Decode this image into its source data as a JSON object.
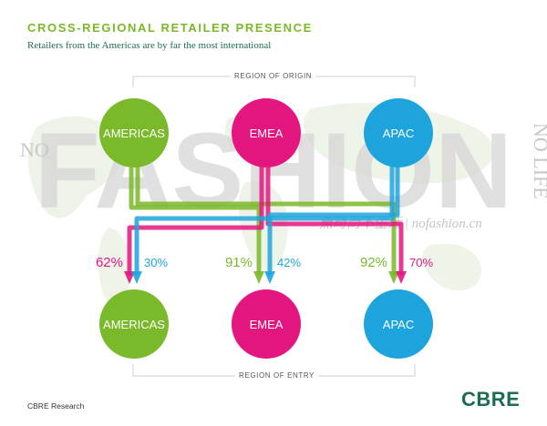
{
  "header": {
    "title": "CROSS-REGIONAL RETAILER PRESENCE",
    "subtitle": "Retailers from the Americas are by far the most international"
  },
  "labels": {
    "origin": "REGION OF ORIGIN",
    "entry": "REGION OF ENTRY"
  },
  "watermark": {
    "big": "FASHION",
    "no": "NO",
    "life": "NO LIFE",
    "cn": "無時尚不生活 | nofashion.cn"
  },
  "origin_regions": [
    {
      "name": "AMERICAS",
      "color": "#7ab929"
    },
    {
      "name": "EMEA",
      "color": "#e3157f"
    },
    {
      "name": "APAC",
      "color": "#1ea4dc"
    }
  ],
  "entry_regions": [
    {
      "name": "AMERICAS",
      "color": "#7ab929",
      "share_a": "62%",
      "share_a_color": "#e3157f",
      "share_b": "30%",
      "share_b_color": "#1ea4dc"
    },
    {
      "name": "EMEA",
      "color": "#e3157f",
      "share_a": "91%",
      "share_a_color": "#7ab929",
      "share_b": "42%",
      "share_b_color": "#1ea4dc"
    },
    {
      "name": "APAC",
      "color": "#1ea4dc",
      "share_a": "92%",
      "share_a_color": "#7ab929",
      "share_b": "70%",
      "share_b_color": "#e3157f"
    }
  ],
  "footer": {
    "source": "CBRE Research",
    "logo": "CBRE"
  }
}
